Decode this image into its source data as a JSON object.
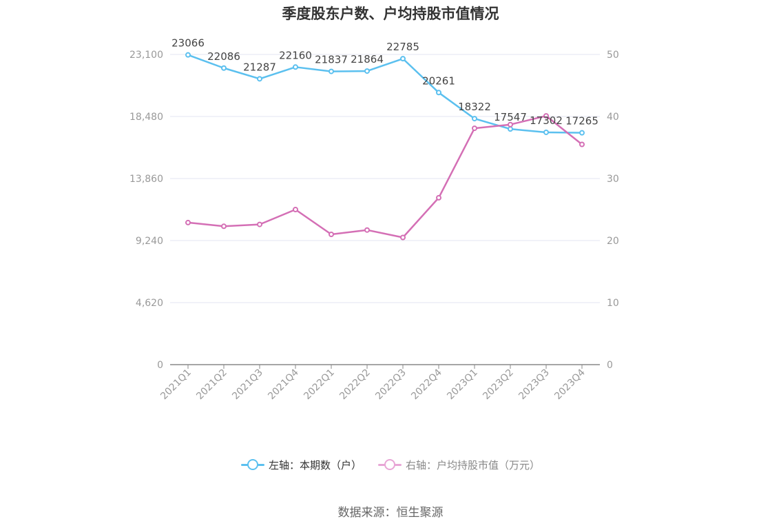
{
  "title": "季度股东户数、户均持股市值情况",
  "source": "数据来源：恒生聚源",
  "legend": [
    {
      "label": "左轴：本期数（户）",
      "color": "#5bc0ef"
    },
    {
      "label": "右轴：户均持股市值（万元）",
      "color": "#e8a6d6"
    }
  ],
  "chart_data": {
    "type": "line",
    "categories": [
      "2021Q1",
      "2021Q2",
      "2021Q3",
      "2021Q4",
      "2022Q1",
      "2022Q2",
      "2022Q3",
      "2022Q4",
      "2023Q1",
      "2023Q2",
      "2023Q3",
      "2023Q4"
    ],
    "left_axis": {
      "ticks": [
        "0",
        "4,620",
        "9,240",
        "13,860",
        "18,480",
        "23,100"
      ],
      "ylim": [
        0,
        23100
      ]
    },
    "right_axis": {
      "ticks": [
        "0",
        "10",
        "20",
        "30",
        "40",
        "50"
      ],
      "ylim": [
        0,
        50
      ]
    },
    "grid": true,
    "legend_position": "bottom",
    "series": [
      {
        "name": "左轴：本期数（户）",
        "axis": "left",
        "color": "#5bc0ef",
        "values": [
          23066,
          22086,
          21287,
          22160,
          21837,
          21864,
          22785,
          20261,
          18322,
          17547,
          17302,
          17265
        ],
        "labels": [
          "23066",
          "22086",
          "21287",
          "22160",
          "21837",
          "21864",
          "22785",
          "20261",
          "18322",
          "17547",
          "17302",
          "17265"
        ]
      },
      {
        "name": "右轴：户均持股市值（万元）",
        "axis": "right",
        "color": "#d46fb5",
        "values": [
          22.9,
          22.3,
          22.6,
          25.0,
          21.0,
          21.7,
          20.5,
          26.9,
          38.1,
          38.7,
          40.1,
          35.5
        ]
      }
    ]
  }
}
